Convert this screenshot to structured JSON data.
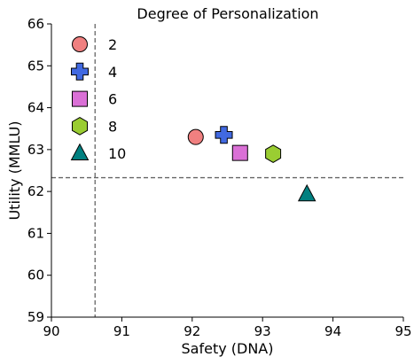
{
  "chart_data": {
    "type": "scatter",
    "title": "",
    "xlabel": "Safety (DNA)",
    "ylabel": "Utility (MMLU)",
    "xlim": [
      90,
      95
    ],
    "ylim": [
      59,
      66
    ],
    "xticks": [
      90,
      91,
      92,
      93,
      94,
      95
    ],
    "yticks": [
      59,
      60,
      61,
      62,
      63,
      64,
      65,
      66
    ],
    "grid": false,
    "legend": {
      "title": "Degree of Personalization",
      "placement": "top-left"
    },
    "reference_lines": {
      "vertical_x": 90.62,
      "horizontal_y": 62.33
    },
    "series": [
      {
        "name": "2",
        "marker": "circle",
        "color": "#F08080",
        "x": [
          92.05
        ],
        "y": [
          63.3
        ]
      },
      {
        "name": "4",
        "marker": "plus",
        "color": "#4169E1",
        "x": [
          92.45
        ],
        "y": [
          63.35
        ]
      },
      {
        "name": "6",
        "marker": "square",
        "color": "#DA70D6",
        "x": [
          92.68
        ],
        "y": [
          62.92
        ]
      },
      {
        "name": "8",
        "marker": "hexagon",
        "color": "#9ACD32",
        "x": [
          93.15
        ],
        "y": [
          62.9
        ]
      },
      {
        "name": "10",
        "marker": "triangle",
        "color": "#008080",
        "x": [
          93.63
        ],
        "y": [
          61.93
        ]
      }
    ]
  }
}
